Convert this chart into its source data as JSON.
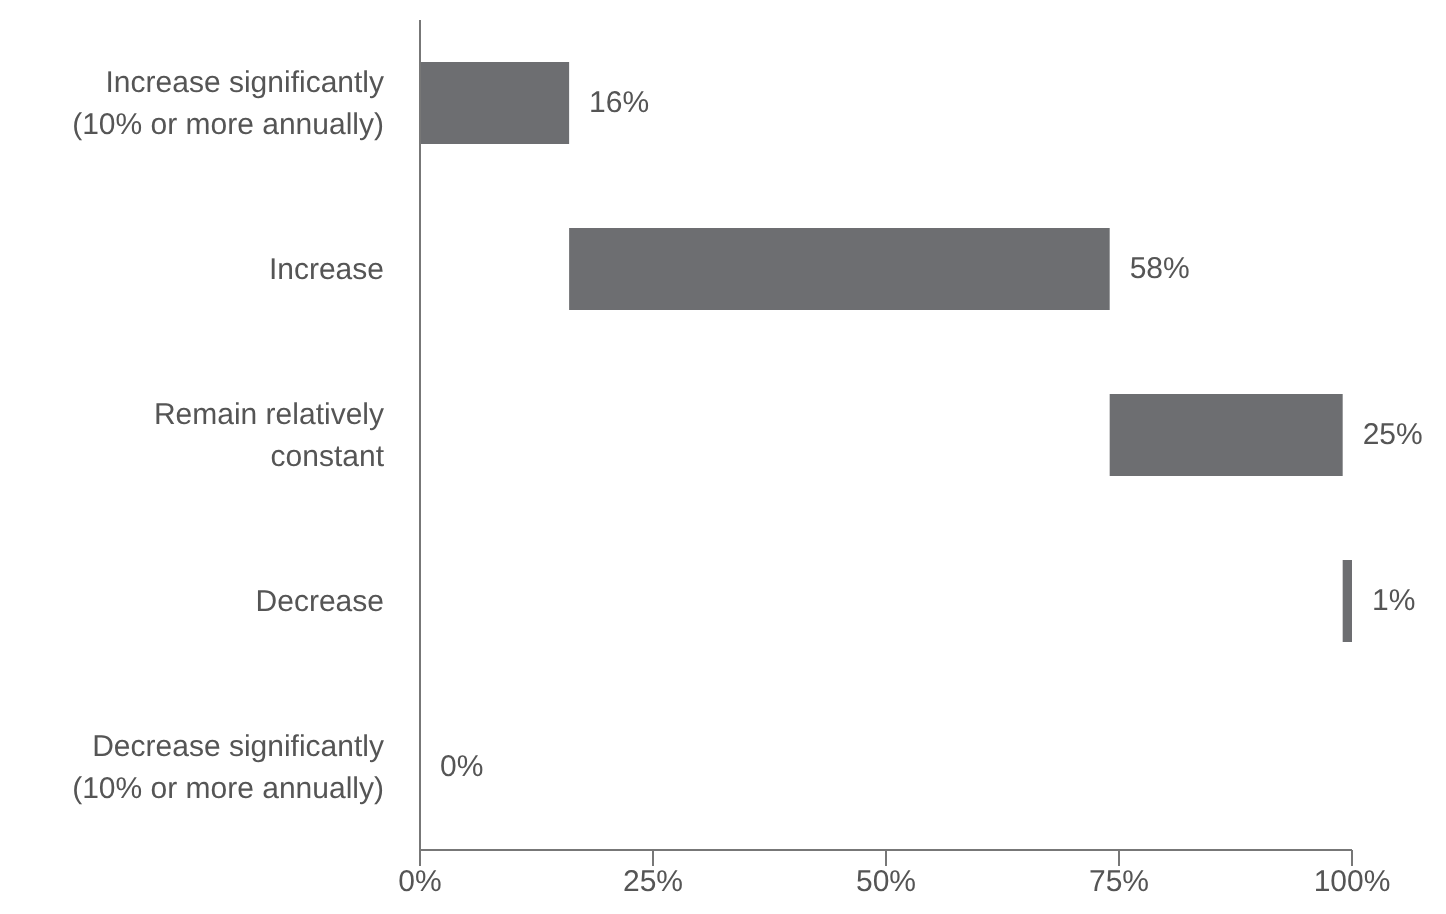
{
  "chart_data": {
    "type": "bar",
    "orientation": "horizontal",
    "categories": [
      "Increase significantly (10% or more annually)",
      "Increase",
      "Remain relatively constant",
      "Decrease",
      "Decrease significantly (10% or more annually)"
    ],
    "values": [
      16,
      58,
      25,
      1,
      0
    ],
    "base": [
      0,
      16,
      74,
      99,
      null
    ],
    "value_labels": [
      "16%",
      "58%",
      "25%",
      "1%",
      "0%"
    ],
    "color": "#6d6e71",
    "xlim": [
      0,
      100
    ],
    "xticks": [
      {
        "value": 0,
        "label": "0%"
      },
      {
        "value": 25,
        "label": "25%"
      },
      {
        "value": 50,
        "label": "50%"
      },
      {
        "value": 75,
        "label": "75%"
      },
      {
        "value": 100,
        "label": "100%"
      }
    ],
    "grid": false,
    "legend": false
  }
}
